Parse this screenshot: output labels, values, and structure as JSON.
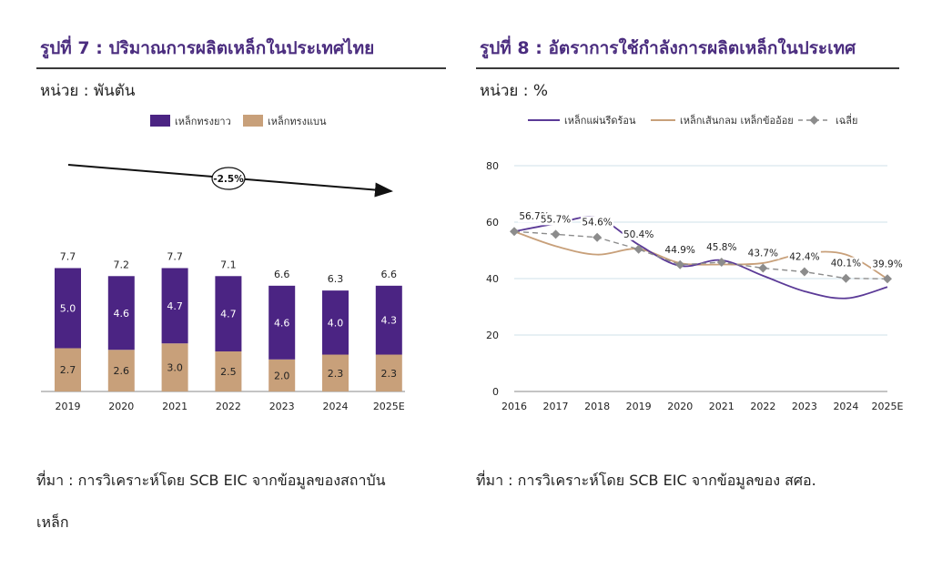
{
  "left": {
    "title": "รูปที่ 7 : ปริมาณการผลิตเหล็กในประเทศไทย",
    "unit": "หน่วย : พันตัน",
    "source_line1": "ที่มา : การวิเคราะห์โดย SCB EIC จากข้อมูลของสถาบัน",
    "source_line2": "เหล็ก"
  },
  "right": {
    "title": "รูปที่ 8 : อัตราการใช้กำลังการผลิตเหล็กในประเทศ",
    "unit": "หน่วย : %",
    "source": "ที่มา : การวิเคราะห์โดย SCB EIC จากข้อมูลของ สศอ."
  },
  "chart_data": [
    {
      "type": "bar",
      "stacked": true,
      "categories": [
        "2019",
        "2020",
        "2021",
        "2022",
        "2023",
        "2024",
        "2025E"
      ],
      "series": [
        {
          "name": "เหล็กทรงยาว",
          "color": "#4b2483",
          "values": [
            5.0,
            4.6,
            4.7,
            4.7,
            4.6,
            4.0,
            4.3
          ]
        },
        {
          "name": "เหล็กทรงแบน",
          "color": "#c8a07a",
          "values": [
            2.7,
            2.6,
            3.0,
            2.5,
            2.0,
            2.3,
            2.3
          ]
        }
      ],
      "totals": [
        7.7,
        7.2,
        7.7,
        7.1,
        6.6,
        6.3,
        6.6
      ],
      "trend_annotation": "-2.5%",
      "legend_position": "top",
      "grid": false
    },
    {
      "type": "line",
      "x": [
        "2016",
        "2017",
        "2018",
        "2019",
        "2020",
        "2021",
        "2022",
        "2023",
        "2024",
        "2025E"
      ],
      "ylim": [
        0,
        80
      ],
      "yticks": [
        0,
        20,
        40,
        60,
        80
      ],
      "grid": true,
      "legend_position": "top",
      "series": [
        {
          "name": "เหล็กแผ่นรีดร้อน",
          "color": "#5b3a97",
          "style": "solid",
          "values": [
            56.7,
            59.5,
            61.5,
            52.0,
            44.5,
            46.5,
            41.0,
            35.5,
            33.0,
            37.0
          ]
        },
        {
          "name": "เหล็กเส้นกลม เหล็กข้ออ้อย",
          "color": "#c8a07a",
          "style": "solid",
          "values": [
            56.7,
            51.5,
            48.5,
            50.5,
            45.5,
            45.0,
            45.5,
            49.0,
            48.5,
            39.9
          ]
        },
        {
          "name": "เฉลี่ย",
          "color": "#8c8c8c",
          "style": "dashed",
          "marker": "diamond",
          "values": [
            56.7,
            55.7,
            54.6,
            50.4,
            44.9,
            45.8,
            43.7,
            42.4,
            40.1,
            39.9
          ]
        }
      ],
      "data_labels": [
        "56.7%",
        "55.7%",
        "54.6%",
        "50.4%",
        "44.9%",
        "45.8%",
        "43.7%",
        "42.4%",
        "40.1%",
        "39.9%"
      ]
    }
  ]
}
